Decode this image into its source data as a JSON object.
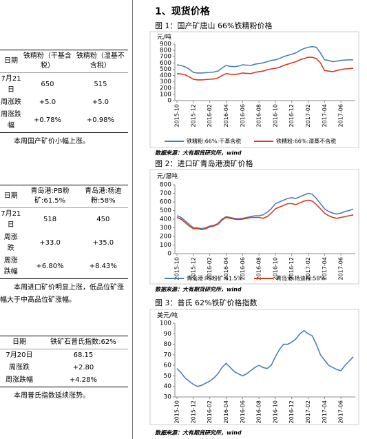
{
  "section_title": "1、现货价格",
  "left_tables": [
    {
      "header": [
        "日期",
        "铁精粉（干基含税）",
        "铁精粉（湿基不含税）"
      ],
      "rows": [
        [
          "7月21日",
          "650",
          "515"
        ],
        [
          "周涨跌",
          "+5.0",
          "+5.0"
        ],
        [
          "周涨跌幅",
          "+0.78%",
          "+0.98%"
        ]
      ],
      "note": "本周国产矿价小幅上涨。"
    },
    {
      "header": [
        "日期",
        "青岛港:PB粉矿:61.5%",
        "青岛港:杨迪粉:58%"
      ],
      "rows": [
        [
          "7月21日",
          "518",
          "450"
        ],
        [
          "周涨跌",
          "+33.0",
          "+35.0"
        ],
        [
          "周涨跌幅",
          "+6.80%",
          "+8.43%"
        ]
      ],
      "note": "本周进口矿价明显上涨，低品位矿涨幅大于中高品位矿涨幅。"
    },
    {
      "header": [
        "日期",
        "铁矿石普氏指数:62%"
      ],
      "rows": [
        [
          "7月20日",
          "68.15"
        ],
        [
          "周涨跌",
          "+2.80"
        ],
        [
          "周涨跌幅",
          "+4.28%"
        ]
      ],
      "note": "本周普氏指数延续涨势。"
    }
  ],
  "chart_data": [
    {
      "type": "line",
      "figure_title": "图 1：国产矿唐山 66%铁精粉价格",
      "unit": "元/吨",
      "source": "数据来源：大有期货研究所，wind",
      "grid": false,
      "categories": [
        "2015-10",
        null,
        null,
        null,
        "2015-12",
        null,
        null,
        null,
        "2016-02",
        null,
        null,
        null,
        "2016-04",
        null,
        null,
        null,
        "2016-06",
        null,
        null,
        null,
        "2016-08",
        null,
        null,
        null,
        "2016-10",
        null,
        null,
        null,
        "2016-12",
        null,
        null,
        null,
        "2017-02",
        null,
        null,
        null,
        "2017-04",
        null,
        null,
        null,
        "2017-06",
        null,
        null,
        null
      ],
      "ylim": [
        0,
        900
      ],
      "yticks": [
        0,
        100,
        200,
        300,
        400,
        500,
        600,
        700,
        800,
        900
      ],
      "series": [
        {
          "name": "铁精粉:66%:干基含税",
          "color": "#4a7ebb",
          "values": [
            570,
            560,
            540,
            500,
            450,
            440,
            440,
            445,
            450,
            455,
            470,
            520,
            560,
            545,
            540,
            550,
            570,
            565,
            560,
            580,
            590,
            600,
            620,
            640,
            650,
            670,
            700,
            720,
            740,
            760,
            800,
            830,
            850,
            860,
            850,
            760,
            650,
            640,
            620,
            630,
            640,
            645,
            650,
            650
          ]
        },
        {
          "name": "铁精粉:66%:湿基不含税",
          "color": "#d9381e",
          "values": [
            430,
            425,
            410,
            380,
            340,
            330,
            330,
            335,
            340,
            345,
            360,
            400,
            430,
            420,
            415,
            425,
            440,
            435,
            430,
            450,
            460,
            470,
            490,
            505,
            515,
            530,
            560,
            580,
            600,
            620,
            650,
            670,
            690,
            690,
            670,
            600,
            480,
            470,
            460,
            480,
            495,
            505,
            510,
            515
          ]
        }
      ]
    },
    {
      "type": "line",
      "figure_title": "图 2：进口矿青岛港澳矿价格",
      "unit": "元/湿吨",
      "source": "数据来源：大有期货研究所，wind",
      "grid": false,
      "categories": [
        "2015-10",
        null,
        null,
        null,
        "2015-12",
        null,
        null,
        null,
        "2016-02",
        null,
        null,
        null,
        "2016-04",
        null,
        null,
        null,
        "2016-06",
        null,
        null,
        null,
        "2016-08",
        null,
        null,
        null,
        "2016-10",
        null,
        null,
        null,
        "2016-12",
        null,
        null,
        null,
        "2017-02",
        null,
        null,
        null,
        "2017-04",
        null,
        null,
        null,
        "2017-06",
        null,
        null,
        null
      ],
      "ylim": [
        0,
        800
      ],
      "yticks": [
        0,
        100,
        200,
        300,
        400,
        500,
        600,
        700,
        800
      ],
      "series": [
        {
          "name": "青岛港:PB粉矿:61.5%",
          "color": "#4a7ebb",
          "values": [
            440,
            420,
            380,
            340,
            300,
            300,
            290,
            300,
            320,
            330,
            350,
            400,
            430,
            420,
            410,
            405,
            410,
            420,
            430,
            440,
            440,
            450,
            480,
            520,
            580,
            600,
            620,
            640,
            650,
            640,
            660,
            680,
            700,
            690,
            640,
            580,
            520,
            490,
            470,
            460,
            470,
            490,
            500,
            518
          ]
        },
        {
          "name": "青岛港:杨迪粉:58%",
          "color": "#d9381e",
          "values": [
            420,
            400,
            360,
            320,
            290,
            290,
            280,
            290,
            310,
            320,
            340,
            390,
            420,
            410,
            400,
            395,
            400,
            410,
            420,
            420,
            420,
            410,
            430,
            470,
            520,
            540,
            560,
            580,
            580,
            570,
            590,
            610,
            620,
            610,
            570,
            520,
            470,
            440,
            420,
            410,
            420,
            430,
            440,
            450
          ]
        }
      ]
    },
    {
      "type": "line",
      "figure_title": "图 3：普氏 62%铁矿价格指数",
      "unit": "美元/吨",
      "source": "数据来源：大有期货研究所，wind",
      "grid": false,
      "categories": [
        "2015-10",
        null,
        null,
        null,
        "2015-12",
        null,
        null,
        null,
        "2016-02",
        null,
        null,
        null,
        "2016-04",
        null,
        null,
        null,
        "2016-06",
        null,
        null,
        null,
        "2016-08",
        null,
        null,
        null,
        "2016-10",
        null,
        null,
        null,
        "2016-12",
        null,
        null,
        null,
        "2017-02",
        null,
        null,
        null,
        "2017-04",
        null,
        null,
        null,
        "2017-06",
        null,
        null,
        null
      ],
      "ylim": [
        30,
        100
      ],
      "yticks": [
        30,
        40,
        50,
        60,
        70,
        80,
        90,
        100
      ],
      "series": [
        {
          "color": "#4a7ebb",
          "values": [
            57,
            53,
            48,
            45,
            42,
            40,
            41,
            43,
            45,
            48,
            52,
            58,
            62,
            58,
            54,
            52,
            50,
            52,
            55,
            58,
            60,
            58,
            57,
            60,
            68,
            75,
            80,
            80,
            82,
            85,
            90,
            93,
            90,
            88,
            80,
            70,
            65,
            60,
            58,
            56,
            55,
            60,
            64,
            68.15
          ]
        }
      ]
    }
  ]
}
